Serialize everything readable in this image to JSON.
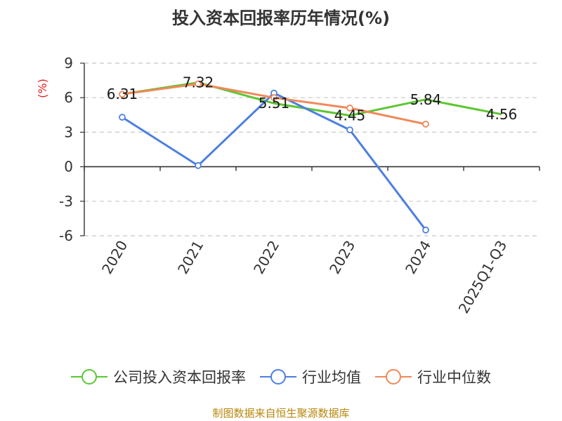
{
  "title": "投入资本回报率历年情况(%)",
  "source": "制图数据来自恒生聚源数据库",
  "chart_data": {
    "type": "line",
    "title": "投入资本回报率历年情况(%)",
    "ylabel": "(%)",
    "xlabel": "",
    "categories": [
      "2020",
      "2021",
      "2022",
      "2023",
      "2024",
      "2025Q1-Q3"
    ],
    "yticks": [
      9,
      6,
      3,
      0,
      -3,
      -6
    ],
    "ylim": [
      -6,
      9
    ],
    "grid": true,
    "legend_position": "bottom",
    "series": [
      {
        "name": "公司投入资本回报率",
        "color": "#5cc631",
        "values": [
          6.31,
          7.32,
          5.51,
          4.45,
          5.84,
          4.56
        ],
        "labels": [
          "6.31",
          "7.32",
          "5.51",
          "4.45",
          "5.84",
          "4.56"
        ]
      },
      {
        "name": "行业均值",
        "color": "#4d7fe0",
        "values": [
          4.3,
          0.1,
          6.4,
          3.2,
          -5.5,
          null
        ]
      },
      {
        "name": "行业中位数",
        "color": "#f0885a",
        "values": [
          6.3,
          7.2,
          6.0,
          5.1,
          3.7,
          null
        ]
      }
    ]
  }
}
